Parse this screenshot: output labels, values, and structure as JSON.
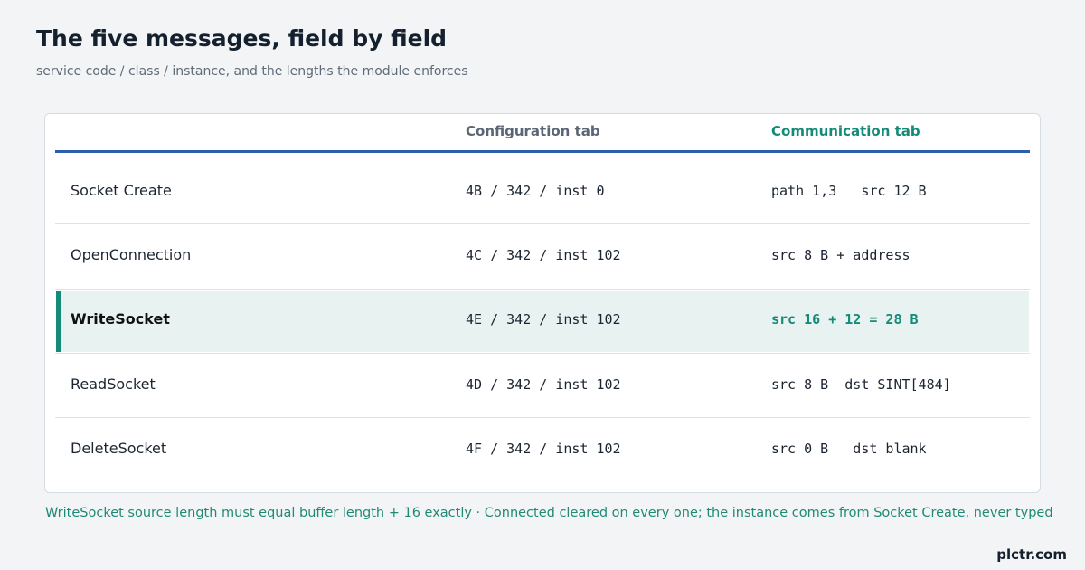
{
  "header": {
    "title": "The five messages, field by field",
    "subtitle": "service code / class / instance, and the lengths the module enforces"
  },
  "table": {
    "columns": [
      "Configuration tab",
      "Communication tab"
    ],
    "rows": [
      [
        "Socket Create",
        "4B / 342 / inst 0",
        "path 1,3   src 12 B"
      ],
      [
        "OpenConnection",
        "4C / 342 / inst 102",
        "src 8 B + address"
      ],
      [
        "WriteSocket",
        "4E / 342 / inst 102",
        "src 16 + 12 = 28 B"
      ],
      [
        "ReadSocket",
        "4D / 342 / inst 102",
        "src 8 B  dst SINT[484]"
      ],
      [
        "DeleteSocket",
        "4F / 342 / inst 102",
        "src 0 B   dst blank"
      ]
    ],
    "highlight_row": 2
  },
  "footnote": "WriteSocket source length must equal buffer length + 16 exactly · Connected cleared on every one; the instance comes from Socket Create, never typed",
  "brand": "plctr.com"
}
